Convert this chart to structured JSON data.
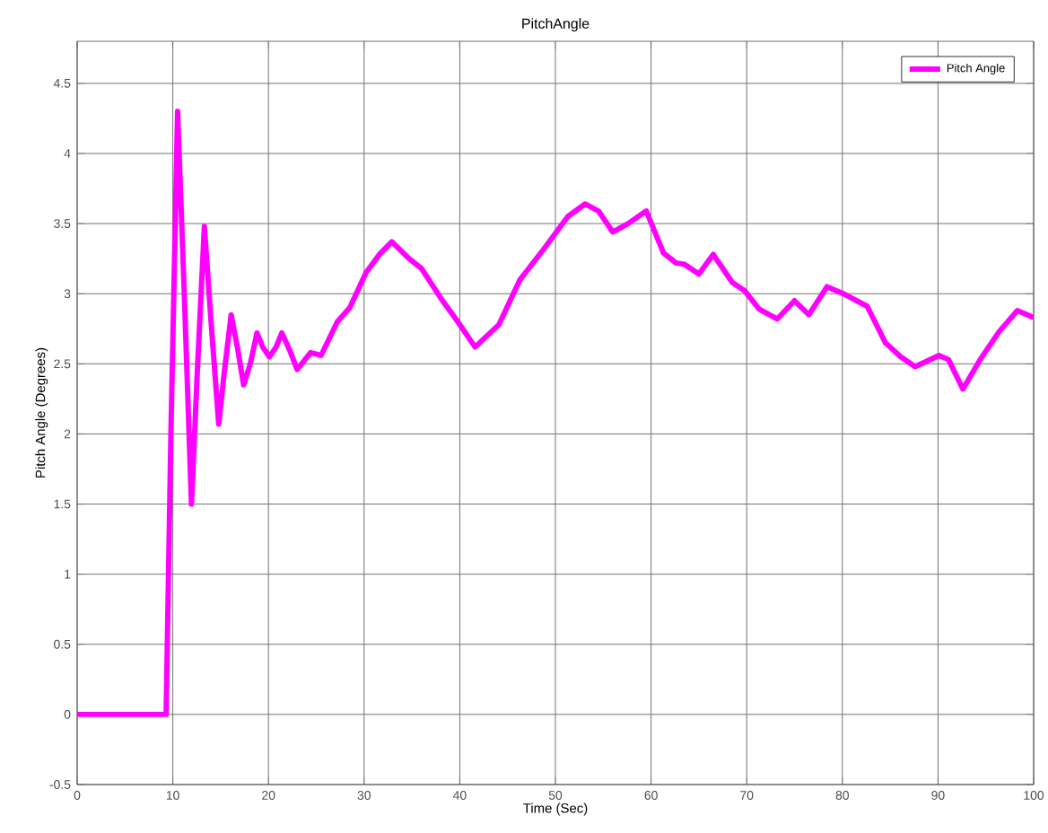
{
  "chart_data": {
    "type": "line",
    "title": "PitchAngle",
    "xlabel": "Time (Sec)",
    "ylabel": "Pitch Angle (Degrees)",
    "xlim": [
      0,
      100
    ],
    "ylim": [
      -0.5,
      4.8
    ],
    "xticks": [
      0,
      10,
      20,
      30,
      40,
      50,
      60,
      70,
      80,
      90,
      100
    ],
    "yticks": [
      -0.5,
      0,
      0.5,
      1,
      1.5,
      2,
      2.5,
      3,
      3.5,
      4,
      4.5
    ],
    "grid": true,
    "legend": "top right",
    "line_style": "solid",
    "marker": "none",
    "series": [
      {
        "name": "Pitch Angle",
        "color": "#ff00ff",
        "x": [
          0,
          9.3,
          9.8,
          10.5,
          11.2,
          11.95,
          12.6,
          13.3,
          14.0,
          14.8,
          15.4,
          16.1,
          16.8,
          17.4,
          18.1,
          18.8,
          19.4,
          20.1,
          20.8,
          21.4,
          22.2,
          23.0,
          24.4,
          25.5,
          27.2,
          28.5,
          30.2,
          31.6,
          32.9,
          34.7,
          36.0,
          38.2,
          39.8,
          41.6,
          44.1,
          46.3,
          48.8,
          51.3,
          53.1,
          54.5,
          56.0,
          57.6,
          59.5,
          61.3,
          62.6,
          63.5,
          65.0,
          66.5,
          68.5,
          69.8,
          71.3,
          73.2,
          75.0,
          76.5,
          78.4,
          80.1,
          82.6,
          84.5,
          86.1,
          87.6,
          90.1,
          91.1,
          92.6,
          94.5,
          96.4,
          98.3,
          100
        ],
        "values": [
          0,
          0,
          2.0,
          4.3,
          3.0,
          1.5,
          2.5,
          3.48,
          2.8,
          2.07,
          2.45,
          2.85,
          2.6,
          2.35,
          2.5,
          2.72,
          2.62,
          2.55,
          2.62,
          2.72,
          2.6,
          2.46,
          2.58,
          2.56,
          2.8,
          2.9,
          3.15,
          3.28,
          3.37,
          3.25,
          3.18,
          2.95,
          2.8,
          2.62,
          2.78,
          3.1,
          3.32,
          3.55,
          3.64,
          3.59,
          3.44,
          3.5,
          3.59,
          3.29,
          3.22,
          3.21,
          3.14,
          3.28,
          3.08,
          3.02,
          2.89,
          2.82,
          2.95,
          2.85,
          3.05,
          3.0,
          2.91,
          2.65,
          2.55,
          2.48,
          2.56,
          2.53,
          2.32,
          2.54,
          2.73,
          2.88,
          2.83
        ]
      }
    ]
  }
}
